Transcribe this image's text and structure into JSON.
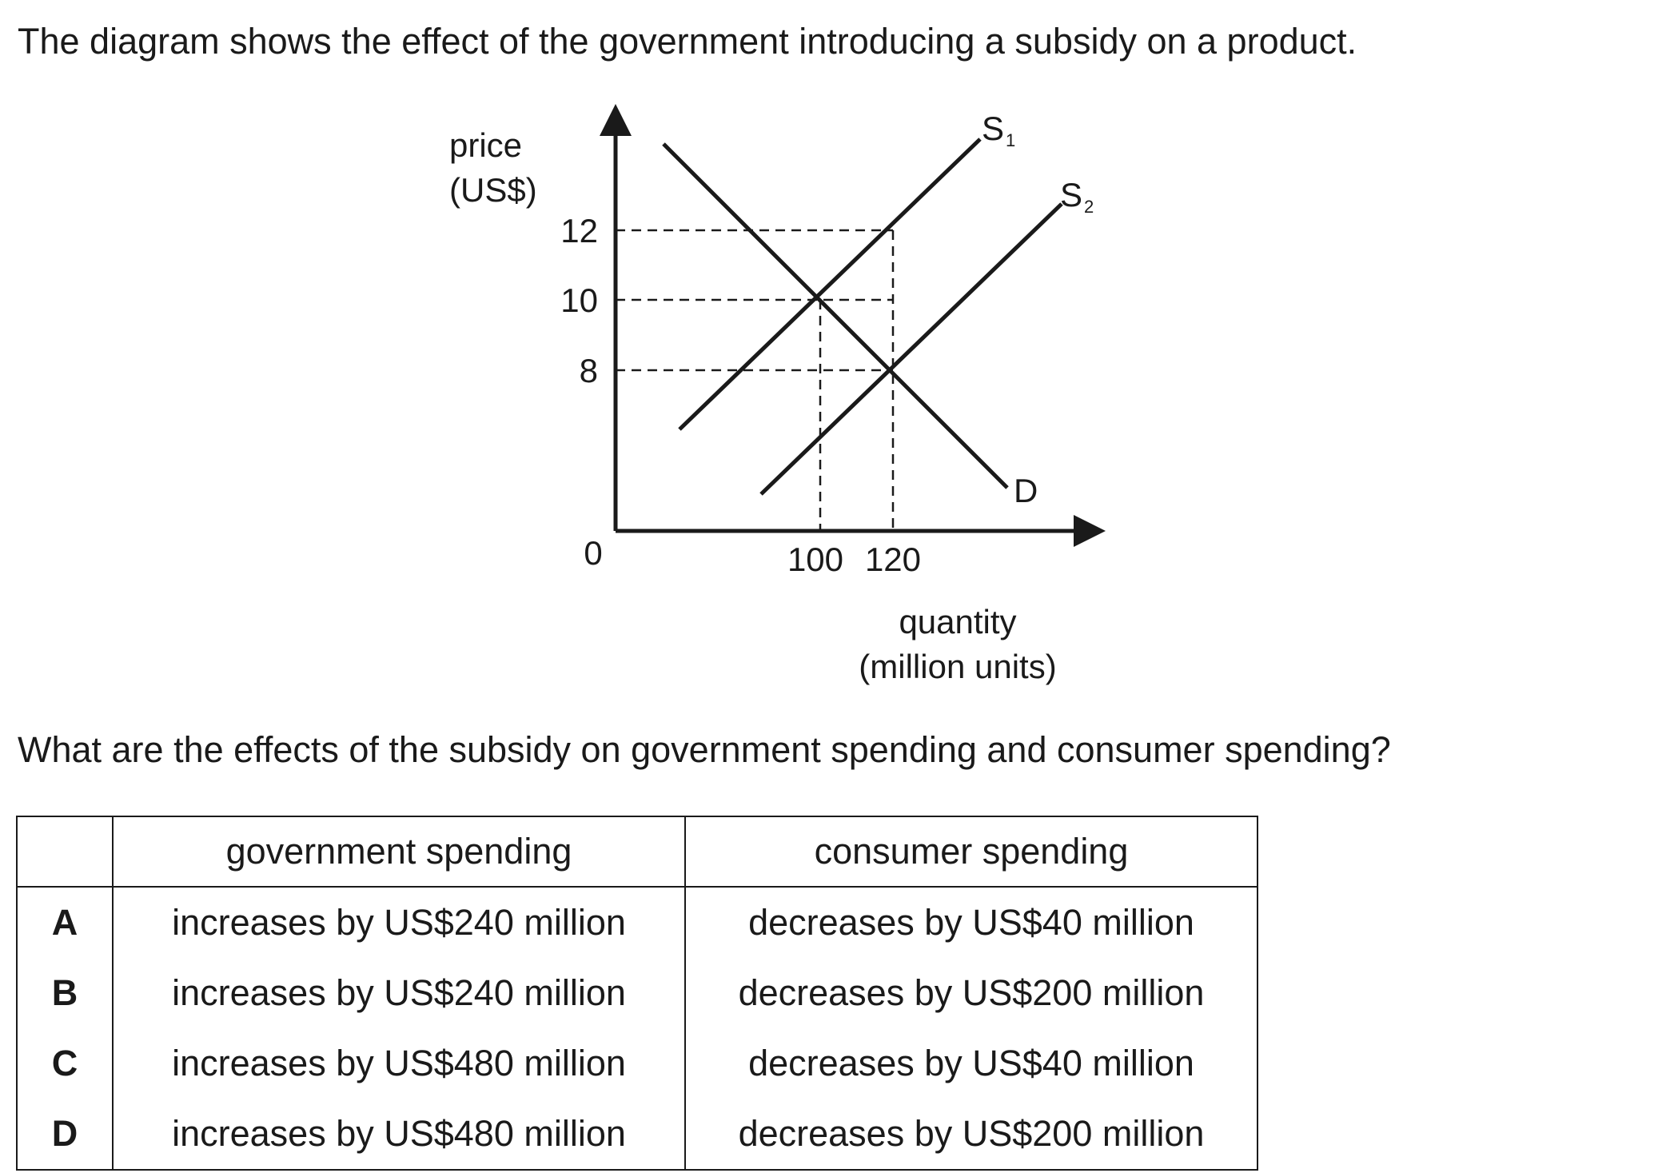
{
  "intro": "The diagram shows the effect of the government introducing a subsidy on a product.",
  "question": "What are the effects of the subsidy on government spending and consumer spending?",
  "diagram": {
    "y_axis_label_line1": "price",
    "y_axis_label_line2": "(US$)",
    "x_axis_label_line1": "quantity",
    "x_axis_label_line2": "(million units)",
    "origin_label": "0",
    "y_ticks": [
      "12",
      "10",
      "8"
    ],
    "x_ticks": [
      "100",
      "120"
    ],
    "curves": {
      "s1": {
        "letter": "S",
        "sub": "1"
      },
      "s2": {
        "letter": "S",
        "sub": "2"
      },
      "d": {
        "letter": "D"
      }
    }
  },
  "table": {
    "headers": [
      "",
      "government spending",
      "consumer spending"
    ],
    "rows": [
      {
        "letter": "A",
        "government": "increases by US$240 million",
        "consumer": "decreases by US$40 million"
      },
      {
        "letter": "B",
        "government": "increases by US$240 million",
        "consumer": "decreases by US$200 million"
      },
      {
        "letter": "C",
        "government": "increases by US$480 million",
        "consumer": "decreases by US$40 million"
      },
      {
        "letter": "D",
        "government": "increases by US$480 million",
        "consumer": "decreases by US$200 million"
      }
    ]
  }
}
